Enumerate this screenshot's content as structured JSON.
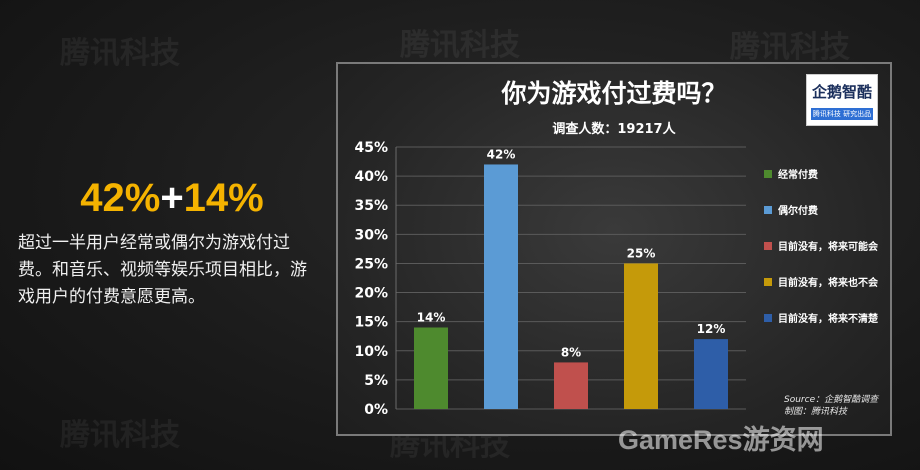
{
  "headline": {
    "part1": "42%",
    "plus": "+",
    "part2": "14%"
  },
  "description": "超过一半用户经常或偶尔为游戏付过费。和音乐、视频等娱乐项目相比，游戏用户的付费意愿更高。",
  "watermark": "腾讯科技",
  "site_watermark": "GameRes游资网",
  "logo": {
    "main": "企鹅智酷",
    "sub": "腾讯科技  研究出品"
  },
  "source_line1": "Source：企鹅智酷调查",
  "source_line2": "制图：腾讯科技",
  "chart_data": {
    "type": "bar",
    "title": "你为游戏付过费吗？",
    "subtitle": "调查人数：19217人",
    "categories": [
      "经常付费",
      "偶尔付费",
      "目前没有，将来可能会",
      "目前没有，将来也不会",
      "目前没有，将来不清楚"
    ],
    "values": [
      14,
      42,
      8,
      25,
      12
    ],
    "value_labels": [
      "14%",
      "42%",
      "8%",
      "25%",
      "12%"
    ],
    "colors": [
      "#4e8a2e",
      "#5b9bd5",
      "#c0504d",
      "#c59a0a",
      "#2e5ea8"
    ],
    "ylim": [
      0,
      45
    ],
    "yticks": [
      "0%",
      "5%",
      "10%",
      "15%",
      "20%",
      "25%",
      "30%",
      "35%",
      "40%",
      "45%"
    ],
    "legend_position": "right",
    "grid": true
  }
}
